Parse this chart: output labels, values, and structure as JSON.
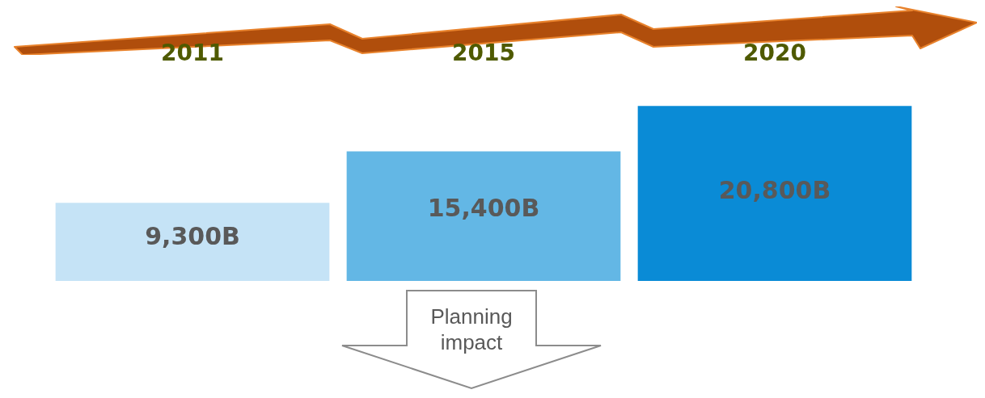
{
  "chart_data": {
    "type": "bar",
    "categories": [
      "2011",
      "2015",
      "2020"
    ],
    "values": [
      9300,
      15400,
      20800
    ],
    "value_labels": [
      "9,300B",
      "15,400B",
      "20,800B"
    ],
    "colors": [
      "#c5e3f6",
      "#63b7e5",
      "#0a8bd6"
    ],
    "annotations": [
      "Planning impact"
    ],
    "legend": false,
    "grid": false
  }
}
